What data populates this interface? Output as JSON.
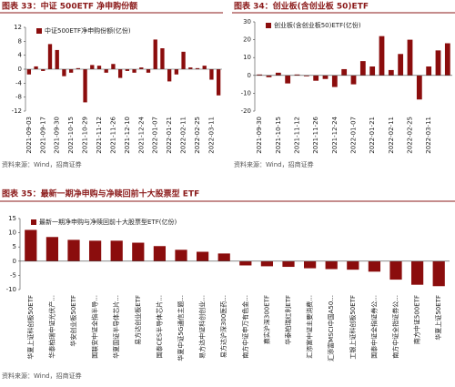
{
  "chart_data": [
    {
      "type": "bar",
      "title": "图表 33：中证 500ETF 净申购份额",
      "source": "资料来源：Wind，招商证券",
      "categories": [
        "2021-09-03",
        null,
        "2021-09-17",
        null,
        "2021-09-30",
        null,
        "2021-10-15",
        null,
        "2021-10-29",
        null,
        "2021-11-12",
        null,
        "2021-11-26",
        null,
        "2021-12-10",
        null,
        "2021-12-24",
        null,
        "2022-01-07",
        null,
        "2022-01-21",
        null,
        "2022-02-11",
        null,
        "2022-02-25",
        null,
        "2022-03-11",
        null
      ],
      "series": [
        {
          "name": "中证500ETF净申购份额(亿份)",
          "color": "#8b0d0d",
          "values": [
            -1.5,
            0.8,
            -0.5,
            7.2,
            5.5,
            -2,
            -1,
            0.3,
            -9.5,
            1.2,
            1,
            -1,
            1.5,
            -2.5,
            -0.5,
            -1,
            0.5,
            -1,
            8.5,
            6,
            -3.5,
            -1.5,
            5,
            0.5,
            0.3,
            1,
            -3,
            -7.5
          ]
        }
      ],
      "ylim": [
        -12,
        12
      ],
      "yticks": [
        -12,
        -8,
        -4,
        0,
        4,
        8,
        12
      ]
    },
    {
      "type": "bar",
      "title": "图表 34：创业板(含创业板 50)ETF",
      "source": "资料来源：Wind，招商证券",
      "categories": [
        "2021-09-30",
        null,
        "2021-10-15",
        null,
        "2021-11-12",
        null,
        "2021-11-26",
        null,
        "2021-12-24",
        null,
        "2022-01-07",
        null,
        "2022-01-21",
        null,
        "2022-02-11",
        null,
        "2022-02-25",
        null,
        "2022-03-11",
        null,
        null
      ],
      "series": [
        {
          "name": "创业板(含创业板50)ETF(亿份)",
          "color": "#8b0d0d",
          "values": [
            0.5,
            -1,
            1.5,
            -4.5,
            0.5,
            -0.5,
            -3,
            -2,
            -6.5,
            3.5,
            -5,
            8,
            5,
            22,
            3,
            12,
            20,
            -13.5,
            5,
            14,
            18
          ]
        }
      ],
      "ylim": [
        -20,
        30
      ],
      "yticks": [
        -20,
        -10,
        0,
        10,
        20,
        30
      ]
    },
    {
      "type": "bar",
      "title": "图表 35：最新一期净申购与净赎回前十大股票型 ETF",
      "source": "资料来源：Wind，招商证券",
      "categories": [
        "华夏上证科创板50ETF",
        "华泰柏瑞中证光伏产...",
        "华安创业板50ETF",
        "国联安中证全指半导...",
        "华夏国证半导体芯片...",
        "易方达创业板ETF",
        "国泰CES半导体芯片...",
        "华夏中证5G通信主题...",
        "易方达中证科创创业...",
        "易方达沪深300医药...",
        "南方中证申万有色金...",
        "嘉实沪深300ETF",
        "华泰柏瑞红利ETF",
        "汇添富中证主要消费...",
        "汇添富MSCI中国A50...",
        "工银上证科创板50ETF",
        "国泰中证全指证券公...",
        "南方中证全指证券公...",
        "南方中证500ETF",
        "华夏上证50ETF"
      ],
      "series": [
        {
          "name": "最新一期净申购与净赎回前十大股票型ETF(亿份)",
          "color": "#8b0d0d",
          "values": [
            11,
            8.5,
            7.5,
            7.2,
            7.2,
            6.5,
            5.3,
            4,
            3.3,
            2.7,
            -1.5,
            -1.8,
            -2,
            -2.5,
            -2.8,
            -3,
            -3.7,
            -6.5,
            -8.3,
            -8.8
          ]
        }
      ],
      "ylim": [
        -10,
        15
      ],
      "yticks": [
        -10,
        -5,
        0,
        5,
        10,
        15
      ]
    }
  ]
}
